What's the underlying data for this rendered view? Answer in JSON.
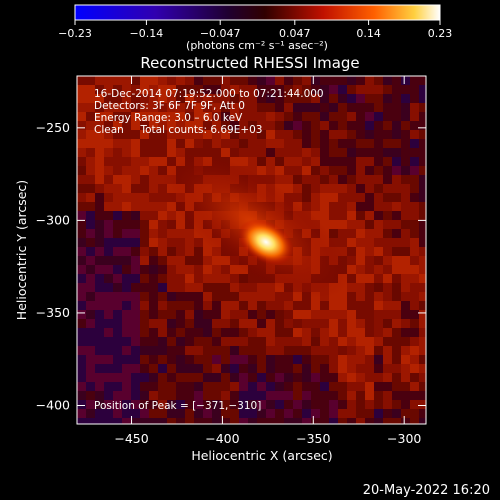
{
  "chart_data": {
    "type": "heatmap",
    "title": "Reconstructed RHESSI Image",
    "xlabel": "Heliocentric X (arcsec)",
    "ylabel": "Heliocentric Y (arcsec)",
    "xlim": [
      -480,
      -288
    ],
    "ylim": [
      -410,
      -222
    ],
    "x_ticks": [
      -450,
      -400,
      -350,
      -300
    ],
    "y_ticks": [
      -250,
      -300,
      -350,
      -400
    ],
    "x_tick_labels": [
      "−450",
      "−400",
      "−350",
      "−300"
    ],
    "y_tick_labels": [
      "−250",
      "−300",
      "−350",
      "−400"
    ],
    "colorbar": {
      "range": [
        -0.23,
        0.23
      ],
      "ticks": [
        -0.23,
        -0.14,
        -0.047,
        0.047,
        0.14,
        0.23
      ],
      "tick_labels": [
        "−0.23",
        "−0.14",
        "−0.047",
        "0.047",
        "0.14",
        "0.23"
      ],
      "units_label": "(photons cm⁻² s⁻¹ asec⁻²)",
      "colors": [
        "#0000ff",
        "#20007a",
        "#000000",
        "#7a0000",
        "#e03000",
        "#ffb000",
        "#ffffff"
      ]
    },
    "annotations": [
      "16-Dec-2014 07:19:52.000 to 07:21:44.000",
      "Detectors: 3F 6F 7F 9F, Att 0",
      "Energy Range: 3.0 – 6.0 keV",
      "Clean     Total counts: 6.69E+03"
    ],
    "peak_text": "Position of Peak = [−371,−310]",
    "peak": {
      "x": -371,
      "y": -310,
      "value": 0.23
    },
    "grid": false,
    "legend": "none"
  },
  "timestamp": "20-May-2022 16:20"
}
